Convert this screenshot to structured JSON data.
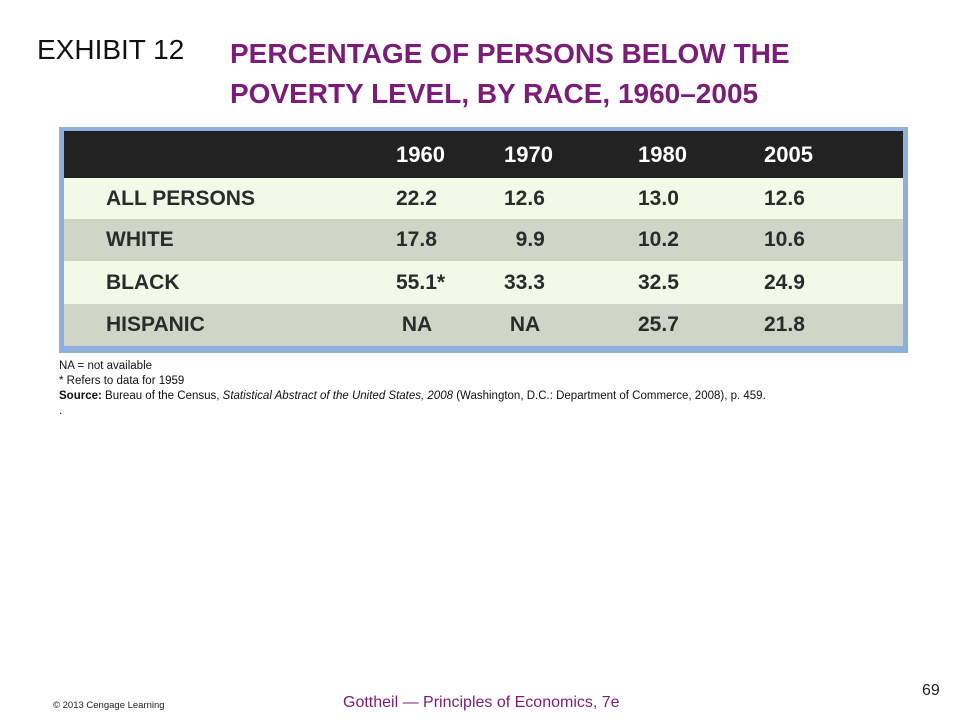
{
  "exhibit": {
    "label": "EXHIBIT 12",
    "title_line1": "PERCENTAGE OF PERSONS BELOW THE",
    "title_line2": "POVERTY LEVEL, BY RACE, 1960–2005"
  },
  "chart_data": {
    "type": "table",
    "title": "PERCENTAGE OF PERSONS BELOW THE POVERTY LEVEL, BY RACE, 1960–2005",
    "columns": [
      "",
      "1960",
      "1970",
      "1980",
      "2005"
    ],
    "rows": [
      [
        "ALL PERSONS",
        "22.2",
        "12.6",
        "13.0",
        "12.6"
      ],
      [
        "WHITE",
        "17.8",
        "  9.9",
        "10.2",
        "10.6"
      ],
      [
        "BLACK",
        "55.1*",
        "33.3",
        "32.5",
        "24.9"
      ],
      [
        "HISPANIC",
        " NA",
        " NA",
        "25.7",
        "21.8"
      ]
    ],
    "colors": {
      "header_bg": "#222222",
      "row_light": "#f2f9e6",
      "row_dark": "#cfd6c8",
      "frame": "#8db0dd"
    }
  },
  "notes": {
    "line1": "NA = not available",
    "line2": "* Refers to data for 1959",
    "source_label": "Source:",
    "source_pre": "  Bureau of the Census, ",
    "source_italic": "Statistical Abstract of the United States, 2008",
    "source_post": " (Washington, D.C.: Department of Commerce, 2008),  p. 459.",
    "line4": "."
  },
  "footer": {
    "copyright": "© 2013 Cengage Learning",
    "book": "Gottheil — Principles of Economics, 7e",
    "page": "69"
  },
  "colors": {
    "title": "#7b1d78",
    "text": "#111111"
  }
}
